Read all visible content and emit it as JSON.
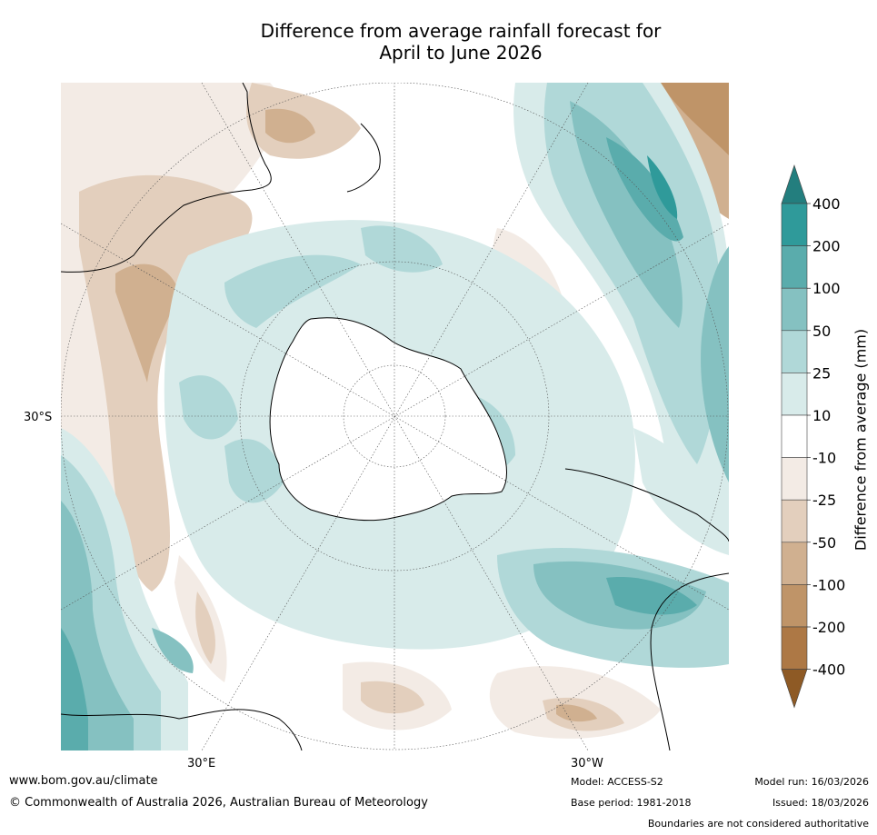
{
  "title": {
    "line1": "Difference from average rainfall forecast for",
    "line2": "April to June 2026"
  },
  "map": {
    "lat_label": "30°S",
    "lon_label_left": "30°E",
    "lon_label_right": "30°W"
  },
  "colorbar": {
    "title": "Difference from average (mm)",
    "ticks": [
      "400",
      "200",
      "100",
      "50",
      "25",
      "10",
      "-10",
      "-25",
      "-50",
      "-100",
      "-200",
      "-400"
    ],
    "colors": {
      "over": "#237e7e",
      "c400": "#2f9a9a",
      "c200": "#5aacac",
      "c100": "#85c1c1",
      "c50": "#b0d8d8",
      "c25": "#d8ebea",
      "c10": "#ffffff",
      "m10": "#f3ebe5",
      "m25": "#e3cfbd",
      "m50": "#d0b090",
      "m100": "#bf9468",
      "m200": "#ad7845",
      "under": "#8e5a25"
    }
  },
  "footer": {
    "website": "www.bom.gov.au/climate",
    "copyright": "© Commonwealth of Australia 2026, Australian Bureau of Meteorology",
    "model": "Model: ACCESS-S2",
    "base_period": "Base period: 1981-2018",
    "model_run": "Model run: 16/03/2026",
    "issued": "Issued: 18/03/2026",
    "disclaimer": "Boundaries are not considered authoritative"
  }
}
